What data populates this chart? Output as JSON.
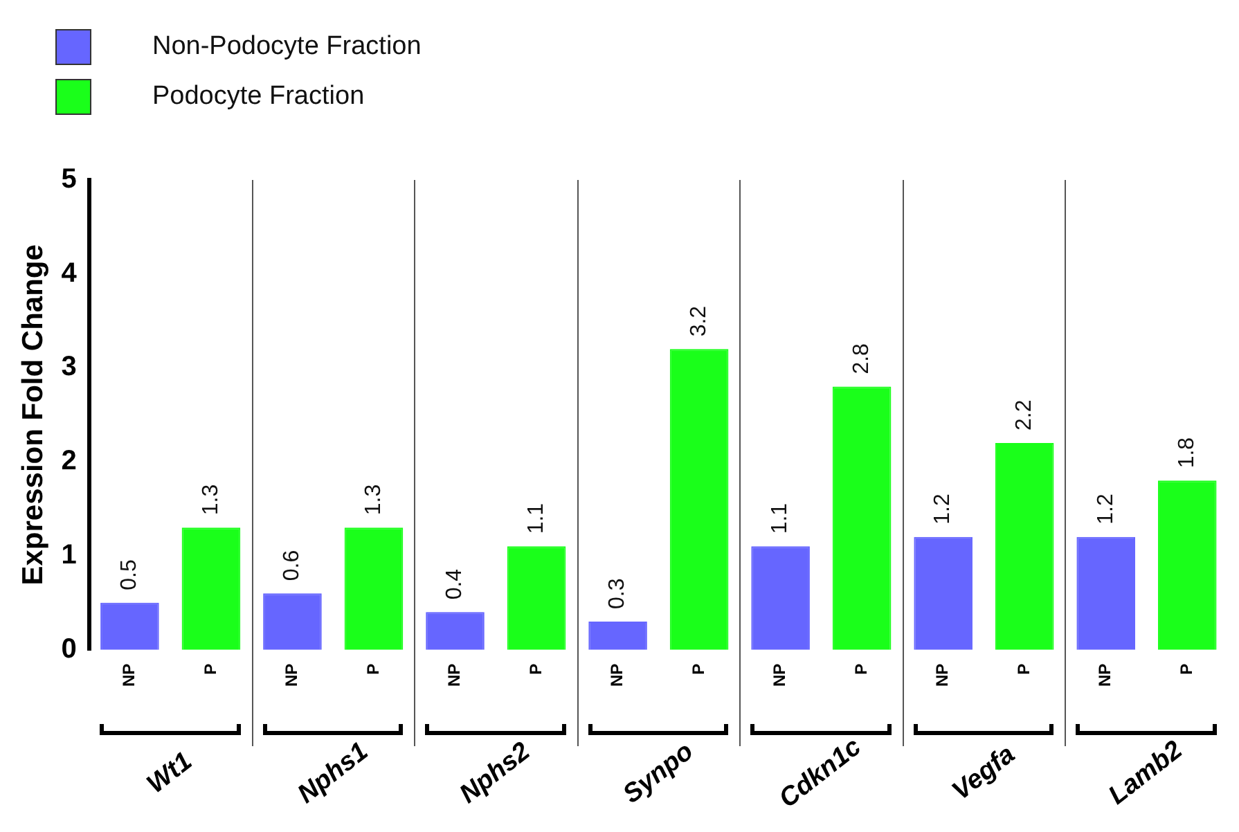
{
  "chart_data": {
    "type": "bar",
    "ylabel": "Expression Fold Change",
    "categories": [
      "NP",
      "P",
      "NP",
      "P",
      "NP",
      "P",
      "NP",
      "P",
      "NP",
      "P",
      "NP",
      "P",
      "NP",
      "P"
    ],
    "series": [
      {
        "name": "Non-Podocyte Fraction",
        "color": "#6666ff",
        "values": [
          0.5,
          null,
          0.6,
          null,
          0.4,
          null,
          0.3,
          null,
          1.1,
          null,
          1.2,
          null,
          1.2,
          null
        ]
      },
      {
        "name": "Podocyte Fraction",
        "color": "#1aff1a",
        "values": [
          null,
          1.3,
          null,
          1.3,
          null,
          1.1,
          null,
          3.2,
          null,
          2.8,
          null,
          2.2,
          null,
          1.8
        ]
      }
    ],
    "ylim": [
      0,
      5
    ],
    "yticks": [
      0,
      1,
      2,
      3,
      4,
      5
    ],
    "data_labels": true,
    "legend": "top left",
    "annotations": [
      "Wt1",
      "Nphs1",
      "Nphs2",
      "Synpo",
      "Cdkn1c",
      "Vegfa",
      "Lamb2"
    ]
  }
}
